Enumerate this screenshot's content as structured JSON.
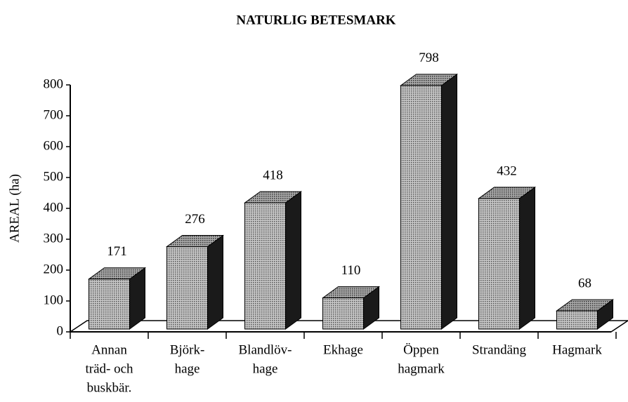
{
  "chart_data": {
    "type": "bar3d",
    "title": "NATURLIG BETESMARK",
    "ylabel": "AREAL (ha)",
    "categories": [
      [
        "Annan",
        "träd- och",
        "buskbär."
      ],
      [
        "Björk-",
        "hage"
      ],
      [
        "Blandlöv-",
        "hage"
      ],
      [
        "Ekhage"
      ],
      [
        "Öppen",
        "hagmark"
      ],
      [
        "Strandäng"
      ],
      [
        "Hagmark"
      ]
    ],
    "values": [
      171,
      276,
      418,
      110,
      798,
      432,
      68
    ],
    "color": "#9a9a9a",
    "ylim": [
      0,
      800
    ],
    "yticks": [
      0,
      100,
      200,
      300,
      400,
      500,
      600,
      700,
      800
    ]
  }
}
